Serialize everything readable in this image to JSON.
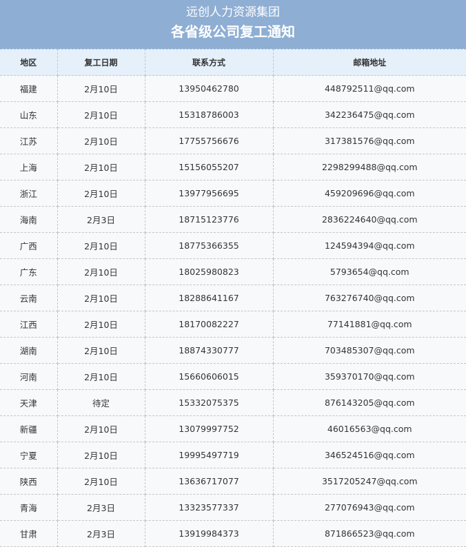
{
  "header": {
    "org": "远创人力资源集团",
    "title": "各省级公司复工通知"
  },
  "table": {
    "columns": [
      "地区",
      "复工日期",
      "联系方式",
      "邮箱地址"
    ],
    "rows": [
      [
        "福建",
        "2月10日",
        "13950462780",
        "448792511@qq.com"
      ],
      [
        "山东",
        "2月10日",
        "15318786003",
        "342236475@qq.com"
      ],
      [
        "江苏",
        "2月10日",
        "17755756676",
        "317381576@qq.com"
      ],
      [
        "上海",
        "2月10日",
        "15156055207",
        "2298299488@qq.com"
      ],
      [
        "浙江",
        "2月10日",
        "13977956695",
        "459209696@qq.com"
      ],
      [
        "海南",
        "2月3日",
        "18715123776",
        "2836224640@qq.com"
      ],
      [
        "广西",
        "2月10日",
        "18775366355",
        "124594394@qq.com"
      ],
      [
        "广东",
        "2月10日",
        "18025980823",
        "5793654@qq.com"
      ],
      [
        "云南",
        "2月10日",
        "18288641167",
        "763276740@qq.com"
      ],
      [
        "江西",
        "2月10日",
        "18170082227",
        "77141881@qq.com"
      ],
      [
        "湖南",
        "2月10日",
        "18874330777",
        "703485307@qq.com"
      ],
      [
        "河南",
        "2月10日",
        "15660606015",
        "359370170@qq.com"
      ],
      [
        "天津",
        "待定",
        "15332075375",
        "876143205@qq.com"
      ],
      [
        "新疆",
        "2月10日",
        "13079997752",
        "46016563@qq.com"
      ],
      [
        "宁夏",
        "2月10日",
        "19995497719",
        "346524516@qq.com"
      ],
      [
        "陕西",
        "2月10日",
        "13636717077",
        "3517205247@qq.com"
      ],
      [
        "青海",
        "2月3日",
        "13323577337",
        "277076943@qq.com"
      ],
      [
        "甘肃",
        "2月3日",
        "13919984373",
        "871866523@qq.com"
      ]
    ]
  },
  "colors": {
    "banner": "#8eaed4",
    "header_row": "#e5f0fb",
    "row_bg": "#f7f9fb"
  }
}
